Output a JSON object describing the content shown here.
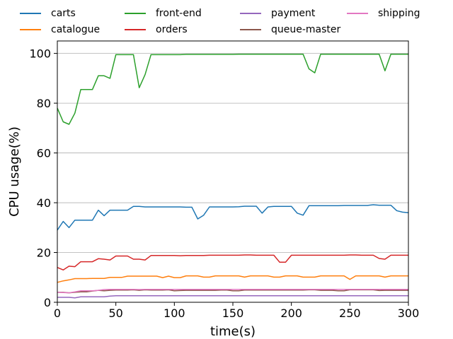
{
  "chart_data": {
    "type": "line",
    "title": "",
    "xlabel": "time(s)",
    "ylabel": "CPU usage(%)",
    "xlim": [
      0,
      300
    ],
    "ylim": [
      0,
      105
    ],
    "x_ticks": [
      0,
      50,
      100,
      150,
      200,
      250,
      300
    ],
    "y_ticks": [
      0,
      20,
      40,
      60,
      80,
      100
    ],
    "grid": "horizontal",
    "legend_placement": "top",
    "x": [
      0,
      5,
      10,
      15,
      20,
      25,
      30,
      35,
      40,
      45,
      50,
      55,
      60,
      65,
      70,
      75,
      80,
      85,
      90,
      95,
      100,
      105,
      110,
      115,
      120,
      125,
      130,
      135,
      140,
      145,
      150,
      155,
      160,
      165,
      170,
      175,
      180,
      185,
      190,
      195,
      200,
      205,
      210,
      215,
      220,
      225,
      230,
      235,
      240,
      245,
      250,
      255,
      260,
      265,
      270,
      275,
      280,
      285,
      290,
      295,
      300
    ],
    "series": [
      {
        "name": "carts",
        "color": "#1f77b4",
        "values": [
          29,
          32.5,
          30,
          33,
          33,
          33,
          33,
          37,
          34.8,
          37,
          37,
          37,
          37,
          38.5,
          38.5,
          38.3,
          38.3,
          38.3,
          38.3,
          38.3,
          38.3,
          38.3,
          38.2,
          38.2,
          33.5,
          35,
          38.3,
          38.3,
          38.3,
          38.3,
          38.3,
          38.4,
          38.6,
          38.6,
          38.6,
          35.8,
          38.3,
          38.5,
          38.5,
          38.5,
          38.5,
          35.8,
          35,
          38.8,
          38.8,
          38.8,
          38.8,
          38.8,
          38.8,
          38.9,
          38.9,
          38.9,
          38.9,
          38.9,
          39.2,
          39,
          39,
          39,
          36.8,
          36.2,
          36
        ]
      },
      {
        "name": "catalogue",
        "color": "#ff7f0e",
        "values": [
          8,
          8.6,
          9,
          9.5,
          9.5,
          9.5,
          9.6,
          9.6,
          9.6,
          10,
          10,
          10,
          10.5,
          10.5,
          10.5,
          10.5,
          10.5,
          10.5,
          9.9,
          10.5,
          9.9,
          9.9,
          10.6,
          10.6,
          10.6,
          10.1,
          10.1,
          10.6,
          10.6,
          10.6,
          10.6,
          10.6,
          10.1,
          10.6,
          10.6,
          10.6,
          10.6,
          10.1,
          10.1,
          10.6,
          10.6,
          10.6,
          10.1,
          10.1,
          10.1,
          10.6,
          10.6,
          10.6,
          10.6,
          10.6,
          9.2,
          10.6,
          10.6,
          10.6,
          10.6,
          10.6,
          10.1,
          10.6,
          10.6,
          10.6,
          10.6
        ]
      },
      {
        "name": "front-end",
        "color": "#2ca02c",
        "values": [
          78,
          72.5,
          71.5,
          76,
          85.5,
          85.5,
          85.5,
          91,
          91,
          90,
          99.5,
          99.5,
          99.5,
          99.5,
          86.2,
          91.5,
          99.5,
          99.5,
          99.5,
          99.5,
          99.5,
          99.5,
          99.6,
          99.6,
          99.6,
          99.6,
          99.6,
          99.6,
          99.6,
          99.6,
          99.6,
          99.7,
          99.7,
          99.7,
          99.7,
          99.7,
          99.7,
          99.7,
          99.7,
          99.7,
          99.7,
          99.7,
          99.7,
          93.8,
          92.2,
          99.7,
          99.7,
          99.7,
          99.7,
          99.7,
          99.7,
          99.7,
          99.7,
          99.7,
          99.7,
          99.7,
          93,
          99.7,
          99.7,
          99.7,
          99.7
        ]
      },
      {
        "name": "orders",
        "color": "#d62728",
        "values": [
          14,
          13,
          14.5,
          14.3,
          16.3,
          16.3,
          16.3,
          17.5,
          17.3,
          17,
          18.6,
          18.6,
          18.6,
          17.3,
          17.3,
          17,
          18.8,
          18.8,
          18.8,
          18.8,
          18.8,
          18.7,
          18.8,
          18.8,
          18.8,
          18.8,
          18.9,
          18.9,
          18.9,
          18.9,
          18.9,
          18.9,
          19,
          19,
          18.9,
          18.9,
          18.9,
          18.9,
          16.1,
          16.1,
          18.9,
          18.9,
          18.9,
          18.9,
          18.9,
          18.9,
          18.9,
          18.9,
          18.9,
          18.9,
          19,
          19,
          18.9,
          18.9,
          18.9,
          17.6,
          17.3,
          18.9,
          18.9,
          18.9,
          18.9
        ]
      },
      {
        "name": "payment",
        "color": "#9467bd",
        "values": [
          2,
          2,
          2,
          1.8,
          2.2,
          2.2,
          2.2,
          2.2,
          2.2,
          2.5,
          2.6,
          2.6,
          2.6,
          2.6,
          2.6,
          2.6,
          2.6,
          2.6,
          2.6,
          2.6,
          2.6,
          2.6,
          2.6,
          2.6,
          2.6,
          2.6,
          2.6,
          2.6,
          2.6,
          2.6,
          2.6,
          2.6,
          2.6,
          2.6,
          2.6,
          2.6,
          2.6,
          2.6,
          2.6,
          2.6,
          2.6,
          2.6,
          2.6,
          2.6,
          2.6,
          2.6,
          2.6,
          2.6,
          2.6,
          2.6,
          2.6,
          2.6,
          2.6,
          2.6,
          2.6,
          2.6,
          2.6,
          2.6,
          2.6,
          2.6,
          2.6
        ]
      },
      {
        "name": "queue-master",
        "color": "#8c564b",
        "values": [
          4,
          4,
          3.8,
          4,
          4.2,
          4.2,
          4.5,
          4.8,
          4.6,
          4.8,
          4.9,
          4.9,
          4.9,
          5,
          4.8,
          5,
          4.9,
          4.9,
          4.9,
          5,
          4.6,
          4.7,
          4.8,
          4.8,
          4.8,
          4.8,
          4.8,
          4.8,
          4.9,
          4.9,
          4.6,
          4.6,
          4.9,
          4.9,
          4.9,
          4.9,
          4.9,
          4.9,
          4.9,
          4.9,
          4.9,
          4.9,
          4.9,
          5,
          5,
          4.8,
          4.8,
          4.8,
          4.6,
          4.6,
          5,
          5,
          5,
          5,
          5,
          4.7,
          4.8,
          4.8,
          4.8,
          4.8,
          4.8
        ]
      },
      {
        "name": "shipping",
        "color": "#e377c2",
        "values": [
          4,
          3.9,
          3.8,
          4.2,
          4.6,
          4.6,
          4.6,
          4.8,
          5.1,
          5.2,
          5.2,
          5.2,
          5.2,
          5.2,
          5.1,
          5.2,
          5.2,
          5.2,
          5.2,
          5.2,
          5.2,
          5.2,
          5.2,
          5.2,
          5.2,
          5.2,
          5.2,
          5.2,
          5.2,
          5.2,
          5.2,
          5.2,
          5.2,
          5.2,
          5.2,
          5.2,
          5.2,
          5.2,
          5.2,
          5.2,
          5.2,
          5.2,
          5.2,
          5.2,
          5.2,
          5.2,
          5.2,
          5.2,
          5.2,
          5.2,
          5.2,
          5.2,
          5.2,
          5.2,
          5.2,
          5.2,
          5.2,
          5.2,
          5.2,
          5.2,
          5.2
        ]
      }
    ]
  }
}
